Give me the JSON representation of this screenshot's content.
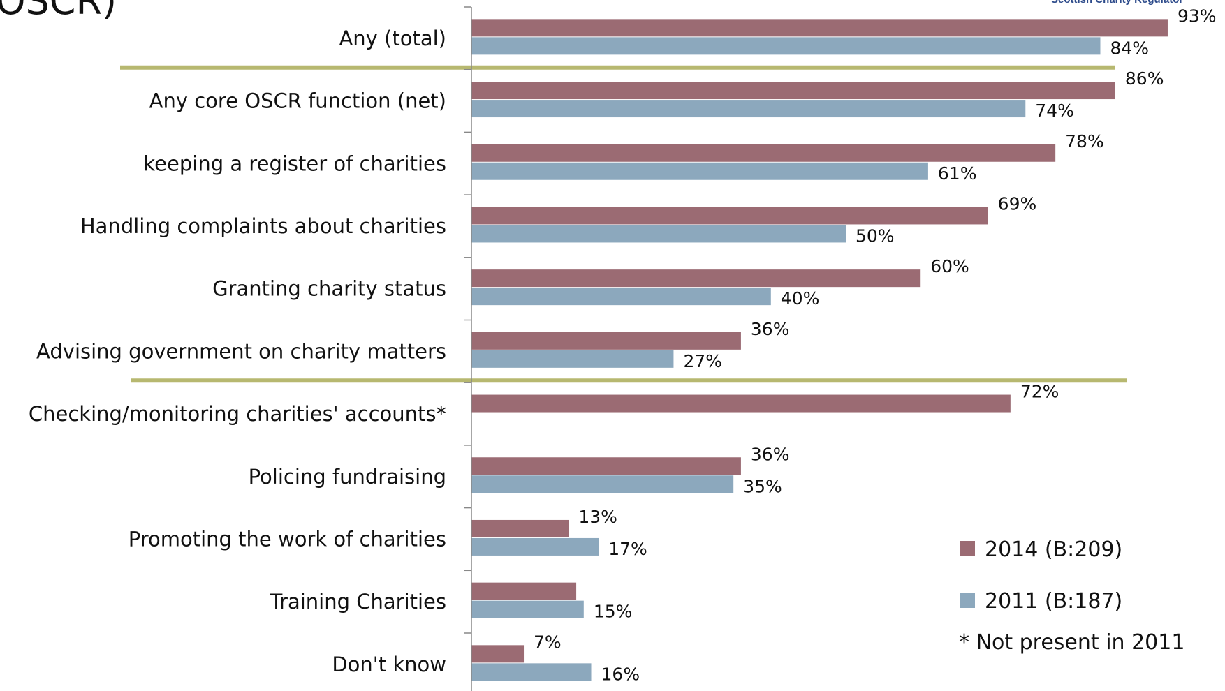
{
  "page": {
    "title": "OSCR)",
    "brand": "Scottish Charity Regulator"
  },
  "legend": {
    "note": "* Not present in 2011"
  },
  "colors": {
    "series_2014": "#9b6b73",
    "series_2011": "#8ca8bd",
    "divider": "#b7b870",
    "axis": "#888888"
  },
  "chart_data": {
    "type": "bar",
    "orientation": "horizontal",
    "categories": [
      "Any (total)",
      "Any core OSCR function (net)",
      "keeping a register of charities",
      "Handling complaints about charities",
      "Granting charity status",
      "Advising government on charity matters",
      "Checking/monitoring charities' accounts*",
      "Policing fundraising",
      "Promoting the work of charities",
      "Training Charities",
      "Don't know"
    ],
    "series": [
      {
        "name": "2014 (B:209)",
        "values": [
          93,
          86,
          78,
          69,
          60,
          36,
          72,
          36,
          13,
          14,
          7
        ],
        "labels": [
          "93%",
          "86%",
          "78%",
          "69%",
          "60%",
          "36%",
          "72%",
          "36%",
          "13%",
          "",
          "7%"
        ]
      },
      {
        "name": "2011 (B:187)",
        "values": [
          84,
          74,
          61,
          50,
          40,
          27,
          null,
          35,
          17,
          15,
          16
        ],
        "labels": [
          "84%",
          "74%",
          "61%",
          "50%",
          "40%",
          "27%",
          "",
          "35%",
          "17%",
          "15%",
          "16%"
        ]
      }
    ],
    "xlim": [
      0,
      100
    ],
    "unit": "%",
    "legend_position": "bottom-right",
    "grid": false,
    "dividers_after_categories": [
      0,
      5
    ]
  }
}
